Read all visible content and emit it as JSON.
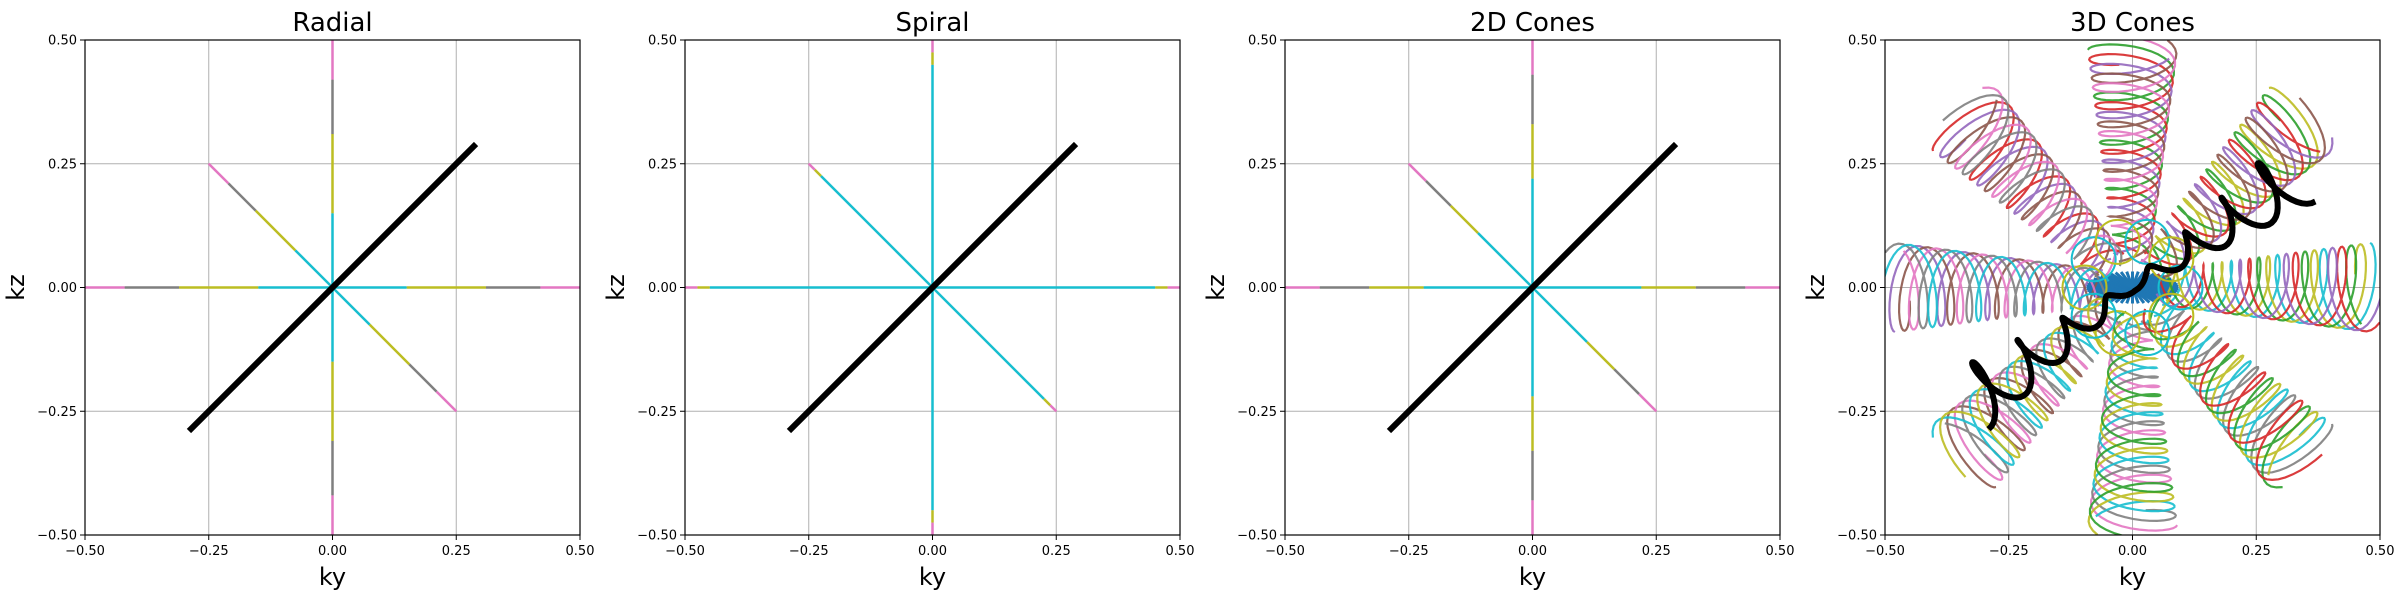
{
  "chart_data": [
    {
      "type": "line",
      "title": "Radial",
      "xlabel": "ky",
      "ylabel": "kz",
      "xlim": [
        -0.5,
        0.5
      ],
      "ylim": [
        -0.5,
        0.5
      ],
      "ticks": [
        -0.5,
        -0.25,
        0.0,
        0.25,
        0.5
      ],
      "tick_labels": [
        "−0.50",
        "−0.25",
        "0.00",
        "0.25",
        "0.50"
      ],
      "grid": true,
      "kind": "radial",
      "spoke_length": 0.5,
      "highlight": {
        "color": "#000000",
        "from": [
          -0.29,
          -0.29
        ],
        "to": [
          0.29,
          0.29
        ]
      },
      "colors": [
        "#17becf",
        "#bcbd22",
        "#7f7f7f",
        "#e377c2"
      ]
    },
    {
      "type": "line",
      "title": "Spiral",
      "xlabel": "ky",
      "ylabel": "kz",
      "xlim": [
        -0.5,
        0.5
      ],
      "ylim": [
        -0.5,
        0.5
      ],
      "ticks": [
        -0.5,
        -0.25,
        0.0,
        0.25,
        0.5
      ],
      "tick_labels": [
        "−0.50",
        "−0.25",
        "0.00",
        "0.25",
        "0.50"
      ],
      "grid": true,
      "kind": "spiral",
      "spoke_length": 0.5,
      "highlight": {
        "color": "#000000",
        "from": [
          -0.29,
          -0.29
        ],
        "to": [
          0.29,
          0.29
        ]
      },
      "colors": [
        "#17becf",
        "#bcbd22",
        "#7f7f7f",
        "#e377c2"
      ]
    },
    {
      "type": "line",
      "title": "2D Cones",
      "xlabel": "ky",
      "ylabel": "kz",
      "xlim": [
        -0.5,
        0.5
      ],
      "ylim": [
        -0.5,
        0.5
      ],
      "ticks": [
        -0.5,
        -0.25,
        0.0,
        0.25,
        0.5
      ],
      "tick_labels": [
        "−0.50",
        "−0.25",
        "0.00",
        "0.25",
        "0.50"
      ],
      "grid": true,
      "kind": "cones2d",
      "spoke_length": 0.5,
      "highlight": {
        "color": "#000000",
        "from": [
          -0.29,
          -0.29
        ],
        "to": [
          0.29,
          0.29
        ]
      },
      "colors": [
        "#17becf",
        "#bcbd22",
        "#7f7f7f",
        "#e377c2"
      ]
    },
    {
      "type": "line",
      "title": "3D Cones",
      "xlabel": "ky",
      "ylabel": "kz",
      "xlim": [
        -0.5,
        0.5
      ],
      "ylim": [
        -0.5,
        0.5
      ],
      "ticks": [
        -0.5,
        -0.25,
        0.0,
        0.25,
        0.5
      ],
      "tick_labels": [
        "−0.50",
        "−0.25",
        "0.00",
        "0.25",
        "0.50"
      ],
      "grid": true,
      "kind": "cones3d",
      "spoke_length": 0.48,
      "highlight": {
        "color": "#000000",
        "from": [
          -0.33,
          -0.23
        ],
        "to": [
          0.33,
          0.23
        ]
      },
      "colors": [
        "#17becf",
        "#bcbd22",
        "#2ca02c",
        "#d62728",
        "#9467bd",
        "#8c564b",
        "#e377c2",
        "#7f7f7f"
      ],
      "center_color": "#1f77b4"
    }
  ]
}
